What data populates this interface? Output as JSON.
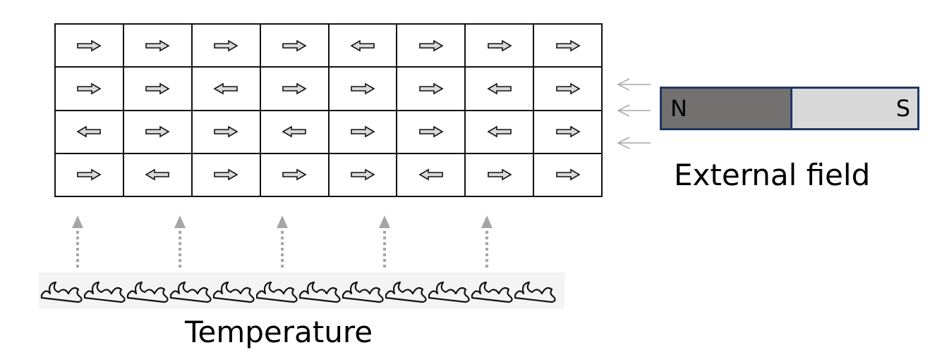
{
  "spin_grid": {
    "rows": [
      [
        "right",
        "right",
        "right",
        "right",
        "left",
        "right",
        "right",
        "right"
      ],
      [
        "right",
        "right",
        "left",
        "right",
        "right",
        "right",
        "left",
        "right"
      ],
      [
        "left",
        "right",
        "right",
        "left",
        "right",
        "right",
        "left",
        "right"
      ],
      [
        "right",
        "left",
        "right",
        "right",
        "right",
        "left",
        "right",
        "right"
      ]
    ],
    "arrow_fill": "#d9d9d9",
    "arrow_stroke": "#111111"
  },
  "magnet": {
    "north_label": "N",
    "south_label": "S",
    "north_color": "#737070",
    "south_color": "#d9d9d9",
    "border_color": "#1f3864"
  },
  "field_label": "External field",
  "temperature_label": "Temperature",
  "heat_arrow_color": "#a6a6a6",
  "field_arrow_color": "#a6a6a6",
  "icons": {
    "spin": "block-arrow-icon",
    "field": "thin-left-arrow-icon",
    "heat": "dotted-up-arrow-icon",
    "flames": "flame-row-icon"
  }
}
